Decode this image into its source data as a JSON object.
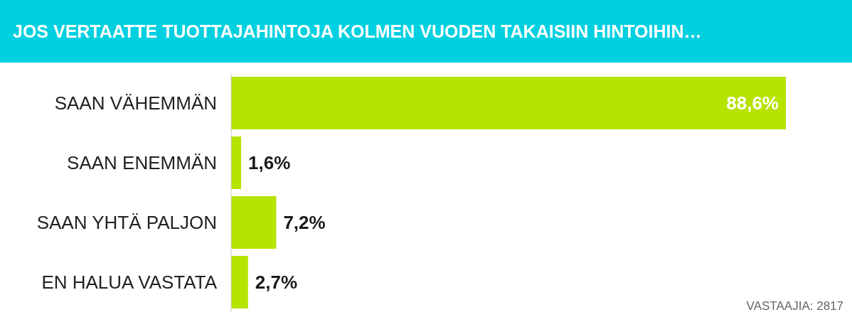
{
  "chart_data": {
    "type": "bar",
    "orientation": "horizontal",
    "title": "JOS VERTAATTE TUOTTAJAHINTOJA KOLMEN VUODEN TAKAISIIN HINTOIHIN…",
    "categories": [
      "SAAN VÄHEMMÄN",
      "SAAN ENEMMÄN",
      "SAAN YHTÄ PALJON",
      "EN HALUA VASTATA"
    ],
    "values": [
      88.6,
      1.6,
      7.2,
      2.7
    ],
    "value_labels": [
      "88,6%",
      "1,6%",
      "7,2%",
      "2,7%"
    ],
    "color": "#b6e300",
    "annotations": [
      "VASTAAJIA: 2817"
    ]
  }
}
